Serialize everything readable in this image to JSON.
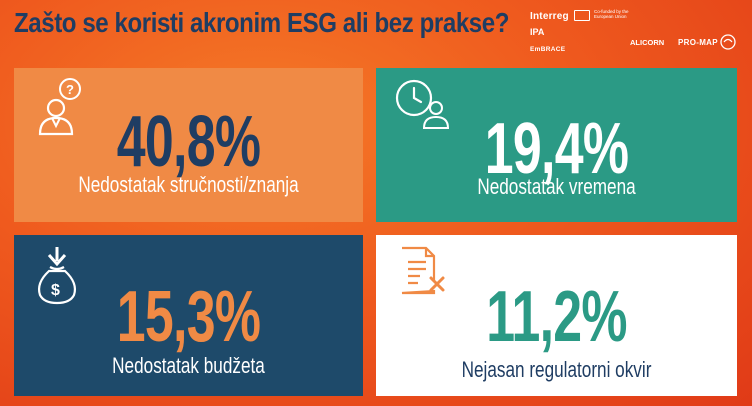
{
  "title": "Zašto se koristi akronim ESG ali bez prakse?",
  "logos": {
    "interreg": "Interreg",
    "eu_text": "Co-funded by the European Union",
    "ipa": "IPA",
    "embrace": "EmBRACE",
    "alicorn": "ALICORN",
    "promap": "PRO-MAP"
  },
  "cards": [
    {
      "value": "40,8%",
      "label": "Nedostatak stručnosti/znanja",
      "icon": "person-question-icon"
    },
    {
      "value": "19,4%",
      "label": "Nedostatak vremena",
      "icon": "clock-person-icon"
    },
    {
      "value": "15,3%",
      "label": "Nedostatak budžeta",
      "icon": "money-bag-icon"
    },
    {
      "value": "11,2%",
      "label": "Nejasan regulatorni okvir",
      "icon": "document-x-icon"
    }
  ],
  "colors": {
    "navy": "#1f3d63",
    "orange": "#f08a45",
    "teal": "#2b9a85",
    "dark_blue": "#1e4a6a",
    "background": "#ef5a1e"
  }
}
